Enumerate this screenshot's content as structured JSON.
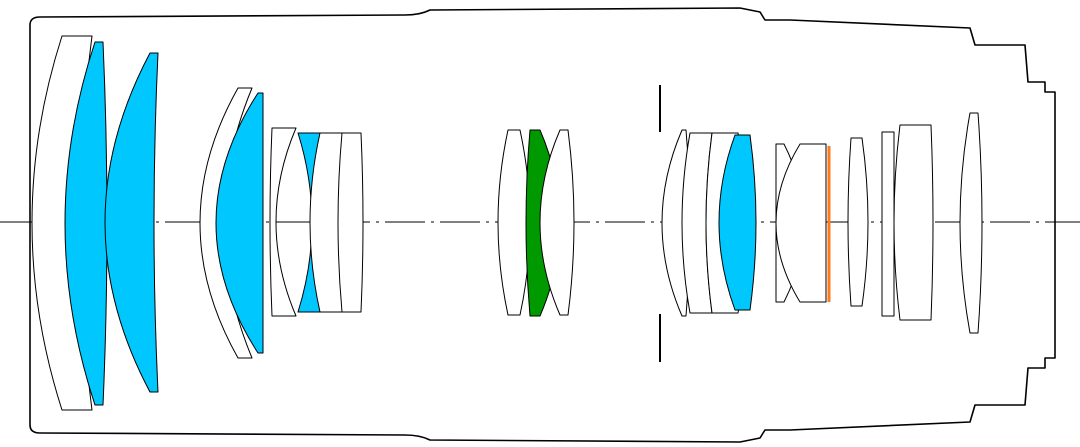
{
  "diagram": {
    "type": "lens-optical-cross-section",
    "colors": {
      "standard_glass": "#ffffff",
      "low_dispersion_glass": "#00c8ff",
      "special_element": "#009a00",
      "highlight_line": "#ff7a1a",
      "outline": "#000000"
    }
  }
}
